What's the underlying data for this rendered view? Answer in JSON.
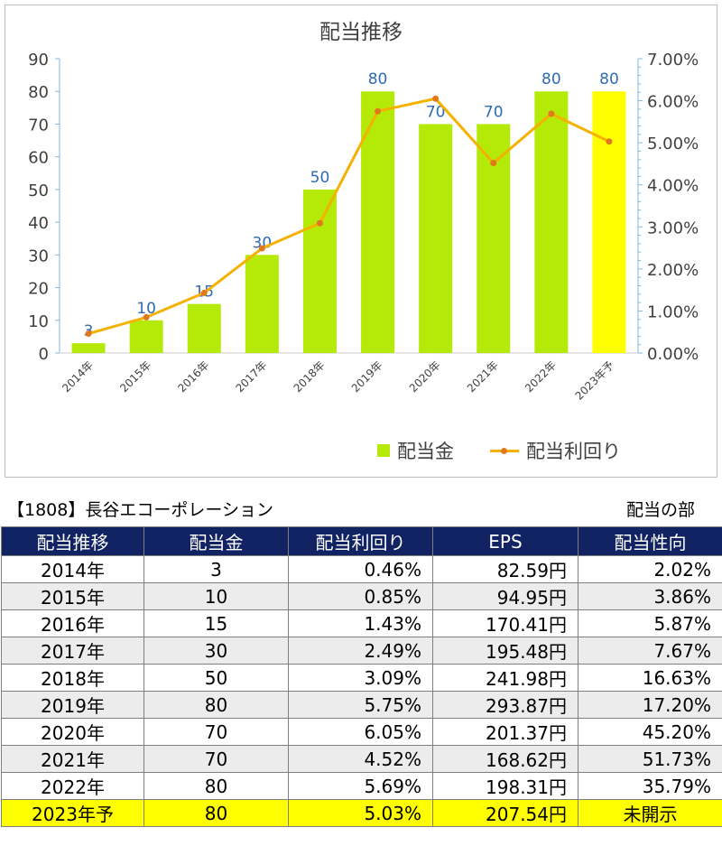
{
  "chart_data": {
    "type": "bar",
    "title": "配当推移",
    "categories": [
      "2014年",
      "2015年",
      "2016年",
      "2017年",
      "2018年",
      "2019年",
      "2020年",
      "2021年",
      "2022年",
      "2023年予"
    ],
    "series": [
      {
        "name": "配当金",
        "type": "bar",
        "axis": "left",
        "values": [
          3,
          10,
          15,
          30,
          50,
          80,
          70,
          70,
          80,
          80
        ],
        "color": "#b5ea08",
        "forecast_color": "#ffff00"
      },
      {
        "name": "配当利回り",
        "type": "line",
        "axis": "right",
        "values": [
          0.46,
          0.85,
          1.43,
          2.49,
          3.09,
          5.75,
          6.05,
          4.52,
          5.69,
          5.03
        ],
        "color": "#f5b100",
        "marker_color": "#e0781e"
      }
    ],
    "y_left": {
      "ylim": [
        0,
        90
      ],
      "ticks": [
        "0",
        "10",
        "20",
        "30",
        "40",
        "50",
        "60",
        "70",
        "80",
        "90"
      ]
    },
    "y_right": {
      "ylim": [
        0,
        7
      ],
      "ticks": [
        "0.00%",
        "1.00%",
        "2.00%",
        "3.00%",
        "4.00%",
        "5.00%",
        "6.00%",
        "7.00%"
      ]
    },
    "data_labels": [
      "3",
      "10",
      "15",
      "30",
      "50",
      "80",
      "70",
      "70",
      "80",
      "80"
    ],
    "legend": [
      "配当金",
      "配当利回り"
    ],
    "legend_position": "bottom-right",
    "grid": false
  },
  "header": {
    "company": "【1808】長谷エコーポレーション",
    "section": "配当の部"
  },
  "table": {
    "columns": [
      "配当推移",
      "配当金",
      "配当利回り",
      "EPS",
      "配当性向"
    ],
    "rows": [
      [
        "2014年",
        "3",
        "0.46%",
        "82.59円",
        "2.02%"
      ],
      [
        "2015年",
        "10",
        "0.85%",
        "94.95円",
        "3.86%"
      ],
      [
        "2016年",
        "15",
        "1.43%",
        "170.41円",
        "5.87%"
      ],
      [
        "2017年",
        "30",
        "2.49%",
        "195.48円",
        "7.67%"
      ],
      [
        "2018年",
        "50",
        "3.09%",
        "241.98円",
        "16.63%"
      ],
      [
        "2019年",
        "80",
        "5.75%",
        "293.87円",
        "17.20%"
      ],
      [
        "2020年",
        "70",
        "6.05%",
        "201.37円",
        "45.20%"
      ],
      [
        "2021年",
        "70",
        "4.52%",
        "168.62円",
        "51.73%"
      ],
      [
        "2022年",
        "80",
        "5.69%",
        "198.31円",
        "35.79%"
      ],
      [
        "2023年予",
        "80",
        "5.03%",
        "207.54円",
        "未開示"
      ]
    ]
  }
}
